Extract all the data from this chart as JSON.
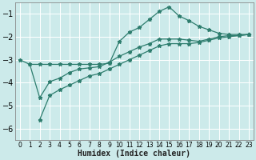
{
  "xlabel": "Humidex (Indice chaleur)",
  "bg_color": "#cceaea",
  "grid_color": "#ffffff",
  "line_color": "#2e7d6e",
  "xlim": [
    -0.5,
    23.5
  ],
  "ylim": [
    -6.5,
    -0.5
  ],
  "yticks": [
    -6,
    -5,
    -4,
    -3,
    -2,
    -1
  ],
  "xticks": [
    0,
    1,
    2,
    3,
    4,
    5,
    6,
    7,
    8,
    9,
    10,
    11,
    12,
    13,
    14,
    15,
    16,
    17,
    18,
    19,
    20,
    21,
    22,
    23
  ],
  "series": [
    {
      "x": [
        0,
        1,
        2,
        3,
        4,
        5,
        6,
        7,
        8,
        9,
        10,
        11,
        12,
        13,
        14,
        15,
        16,
        17,
        18,
        19,
        20,
        21,
        22,
        23
      ],
      "y": [
        -3.0,
        -3.2,
        -3.2,
        -3.2,
        -3.2,
        -3.2,
        -3.2,
        -3.2,
        -3.2,
        -3.15,
        -2.2,
        -1.8,
        -1.6,
        -1.25,
        -0.9,
        -0.7,
        -1.1,
        -1.3,
        -1.55,
        -1.7,
        -1.85,
        -1.9,
        -1.9,
        -1.9
      ]
    },
    {
      "x": [
        1,
        2,
        3,
        4,
        5,
        6,
        7,
        8,
        9,
        10,
        11,
        12,
        13,
        14,
        15,
        16,
        17,
        18,
        19,
        20,
        21,
        22,
        23
      ],
      "y": [
        -3.2,
        -4.65,
        -3.95,
        -3.8,
        -3.55,
        -3.4,
        -3.35,
        -3.3,
        -3.1,
        -2.85,
        -2.65,
        -2.45,
        -2.3,
        -2.1,
        -2.1,
        -2.1,
        -2.15,
        -2.2,
        -2.1,
        -2.0,
        -1.95,
        -1.95,
        -1.9
      ]
    },
    {
      "x": [
        2,
        3,
        4,
        5,
        6,
        7,
        8,
        9,
        10,
        11,
        12,
        13,
        14,
        15,
        16,
        17,
        18,
        19,
        20,
        21,
        22,
        23
      ],
      "y": [
        -5.6,
        -4.55,
        -4.3,
        -4.1,
        -3.9,
        -3.7,
        -3.6,
        -3.4,
        -3.2,
        -3.0,
        -2.8,
        -2.6,
        -2.4,
        -2.3,
        -2.3,
        -2.3,
        -2.25,
        -2.15,
        -2.05,
        -2.0,
        -1.95,
        -1.9
      ]
    }
  ]
}
